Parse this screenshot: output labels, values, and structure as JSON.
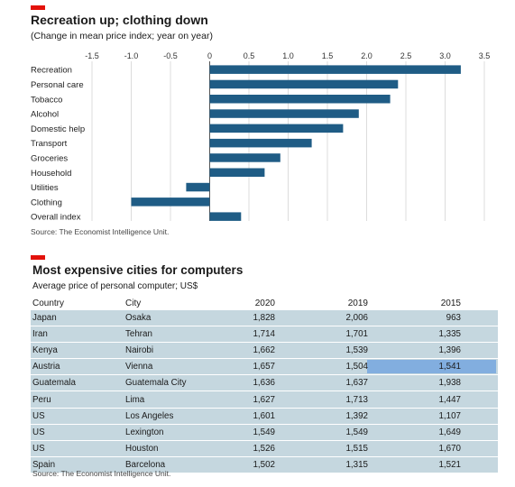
{
  "chart_data": [
    {
      "type": "bar",
      "orientation": "horizontal",
      "title": "Recreation up; clothing down",
      "subtitle": "(Change in mean price index; year on year)",
      "categories": [
        "Recreation",
        "Personal care",
        "Tobacco",
        "Alcohol",
        "Domestic help",
        "Transport",
        "Groceries",
        "Household",
        "Utilities",
        "Clothing",
        "Overall index"
      ],
      "values": [
        3.2,
        2.4,
        2.3,
        1.9,
        1.7,
        1.3,
        0.9,
        0.7,
        -0.3,
        -1.0,
        0.4
      ],
      "xlim": [
        -1.5,
        3.5
      ],
      "xticks": [
        "-1.5",
        "-1.0",
        "-0.5",
        "0",
        "0.5",
        "1.0",
        "1.5",
        "2.0",
        "2.5",
        "3.0",
        "3.5"
      ],
      "xtick_values": [
        -1.5,
        -1.0,
        -0.5,
        0,
        0.5,
        1.0,
        1.5,
        2.0,
        2.5,
        3.0,
        3.5
      ],
      "grid": true,
      "color": "#1f5c85",
      "source": "Source: The Economist Intelligence Unit."
    },
    {
      "type": "table",
      "title": "Most expensive cities for computers",
      "subtitle": "Average price of personal computer; US$",
      "columns": [
        "Country",
        "City",
        "2020",
        "2019",
        "2015"
      ],
      "rows": [
        [
          "Japan",
          "Osaka",
          "1,828",
          "2,006",
          "963"
        ],
        [
          "Iran",
          "Tehran",
          "1,714",
          "1,701",
          "1,335"
        ],
        [
          "Kenya",
          "Nairobi",
          "1,662",
          "1,539",
          "1,396"
        ],
        [
          "Austria",
          "Vienna",
          "1,657",
          "1,504",
          "1,541"
        ],
        [
          "Guatemala",
          "Guatemala City",
          "1,636",
          "1,637",
          "1,938"
        ],
        [
          "Peru",
          "Lima",
          "1,627",
          "1,713",
          "1,447"
        ],
        [
          "US",
          "Los Angeles",
          "1,601",
          "1,392",
          "1,107"
        ],
        [
          "US",
          "Lexington",
          "1,549",
          "1,549",
          "1,649"
        ],
        [
          "US",
          "Houston",
          "1,526",
          "1,515",
          "1,670"
        ],
        [
          "Spain",
          "Barcelona",
          "1,502",
          "1,315",
          "1,521"
        ]
      ],
      "row_color": "#c5d7df",
      "highlight_color": "#82aedf",
      "source": "Source: The Economist Intelligence Unit."
    }
  ],
  "brand_color": "#e3120b"
}
